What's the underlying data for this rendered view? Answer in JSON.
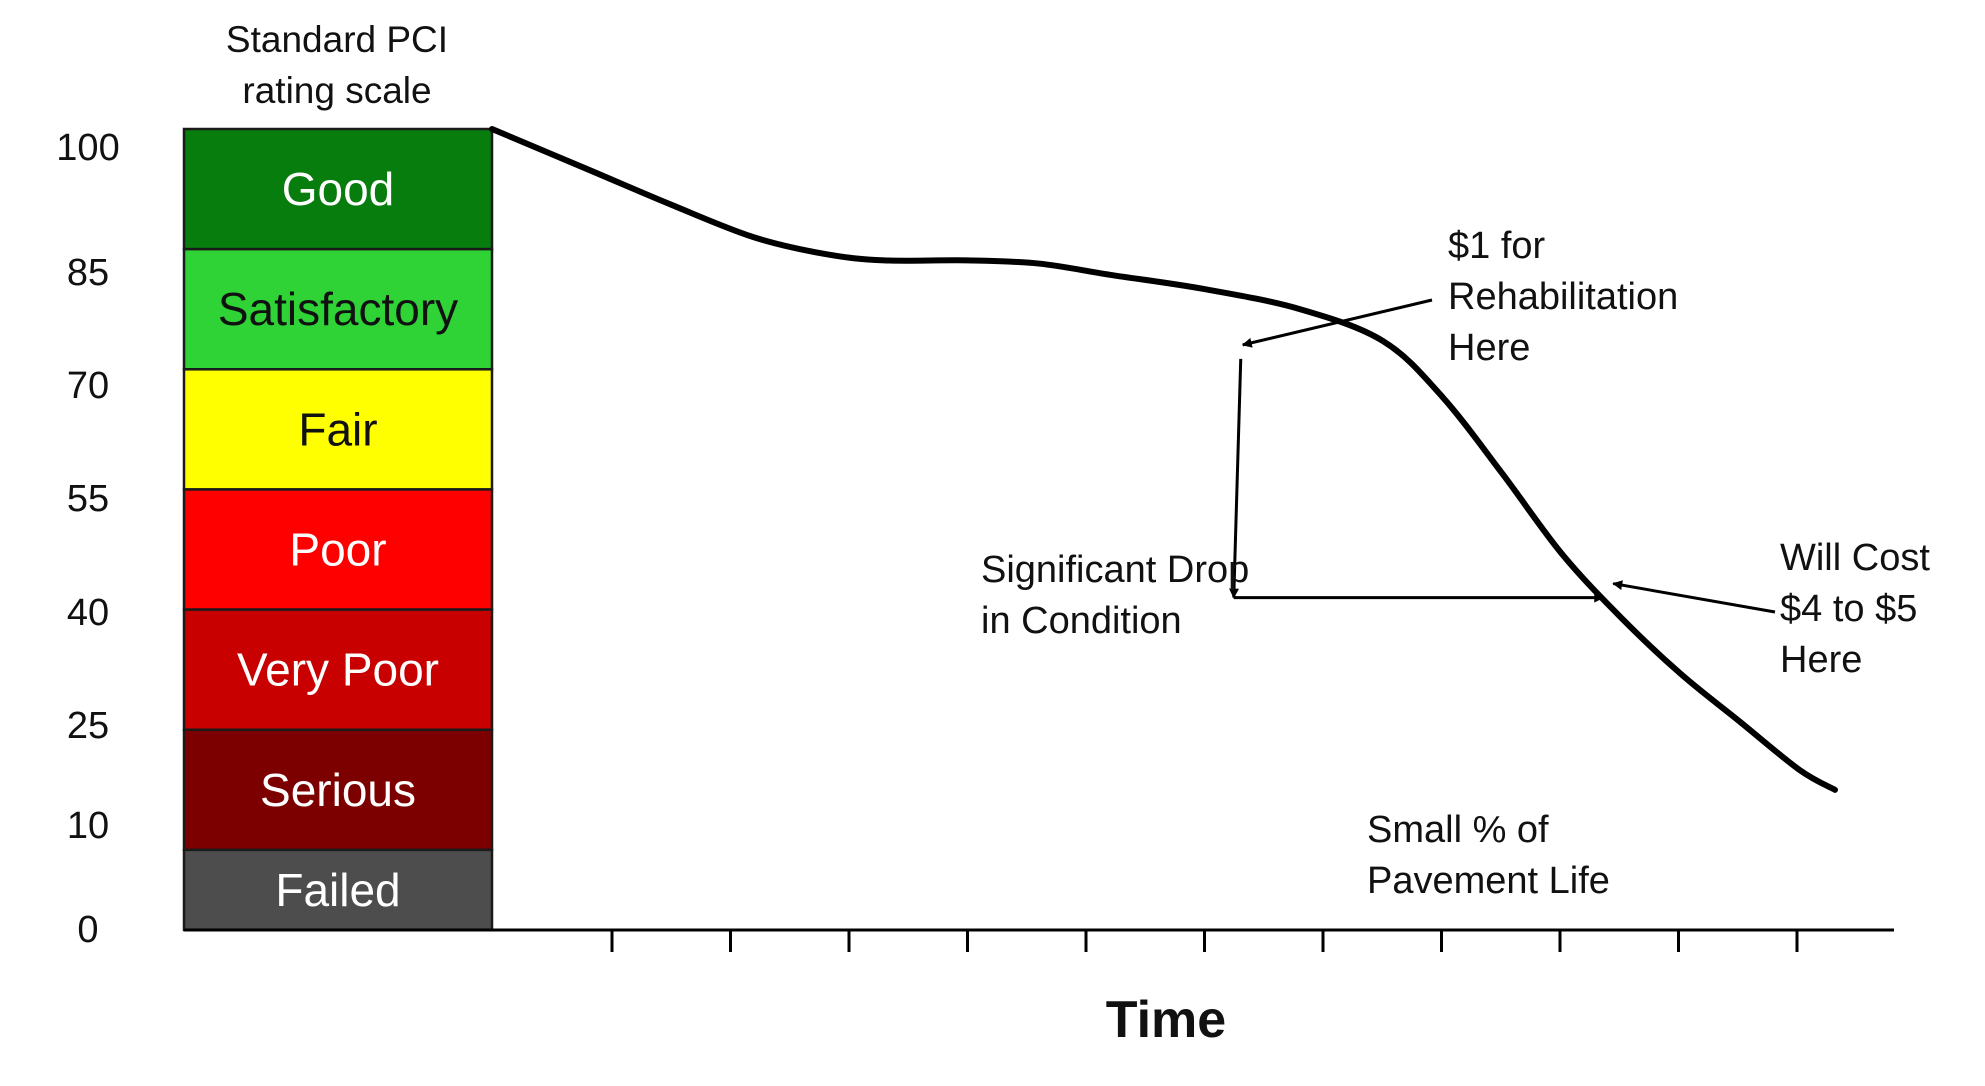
{
  "chart_data": {
    "type": "line",
    "title": "",
    "scale_title_lines": [
      "Standard PCI",
      "rating scale"
    ],
    "xlabel": "Time",
    "ylabel": "",
    "ylim": [
      0,
      100
    ],
    "y_ticks": [
      {
        "value": 100,
        "label": "100"
      },
      {
        "value": 85,
        "label": "85"
      },
      {
        "value": 70,
        "label": "70"
      },
      {
        "value": 55,
        "label": "55"
      },
      {
        "value": 40,
        "label": "40"
      },
      {
        "value": 25,
        "label": "25"
      },
      {
        "value": 10,
        "label": "10"
      },
      {
        "value": 0,
        "label": "0"
      }
    ],
    "x_tick_count": 11,
    "bands": [
      {
        "label": "Good",
        "from": 85,
        "to": 100,
        "color": "#067d0d",
        "text_color": "#ffffff"
      },
      {
        "label": "Satisfactory",
        "from": 70,
        "to": 85,
        "color": "#2fd336",
        "text_color": "#111111"
      },
      {
        "label": "Fair",
        "from": 55,
        "to": 70,
        "color": "#ffff00",
        "text_color": "#111111"
      },
      {
        "label": "Poor",
        "from": 40,
        "to": 55,
        "color": "#ff0000",
        "text_color": "#ffffff"
      },
      {
        "label": "Very Poor",
        "from": 25,
        "to": 40,
        "color": "#c80000",
        "text_color": "#ffffff"
      },
      {
        "label": "Serious",
        "from": 10,
        "to": 25,
        "color": "#7d0000",
        "text_color": "#ffffff"
      },
      {
        "label": "Failed",
        "from": 0,
        "to": 10,
        "color": "#4d4d4d",
        "text_color": "#ffffff"
      }
    ],
    "curve": {
      "name": "",
      "points": [
        [
          0,
          100
        ],
        [
          0.8,
          95
        ],
        [
          1.5,
          90.6
        ],
        [
          2.2,
          86.5
        ],
        [
          2.8,
          84.4
        ],
        [
          3.3,
          83.6
        ],
        [
          4.0,
          83.6
        ],
        [
          4.6,
          83.2
        ],
        [
          5.2,
          81.8
        ],
        [
          6.0,
          80.0
        ],
        [
          6.8,
          77.5
        ],
        [
          7.5,
          73.5
        ],
        [
          8.0,
          66.5
        ],
        [
          8.5,
          57.0
        ],
        [
          9.0,
          47.0
        ],
        [
          9.5,
          39.0
        ],
        [
          10.0,
          32.0
        ],
        [
          10.5,
          26.0
        ],
        [
          11.0,
          20.0
        ],
        [
          11.3,
          17.5
        ]
      ]
    },
    "annotations": {
      "rehab_text": [
        "$1 for",
        "Rehabilitation",
        "Here"
      ],
      "rehab_point": [
        6.3,
        71.3
      ],
      "cost_text": [
        "Will Cost",
        "$4 to $5",
        "Here"
      ],
      "cost_point": [
        9.35,
        41.5
      ],
      "drop_text": [
        "Significant Drop",
        "in Condition"
      ],
      "life_text": [
        "Small % of",
        "Pavement Life"
      ]
    },
    "colors": {
      "curve": "#000000",
      "axis": "#000000",
      "text": "#111111"
    },
    "grid": false
  }
}
